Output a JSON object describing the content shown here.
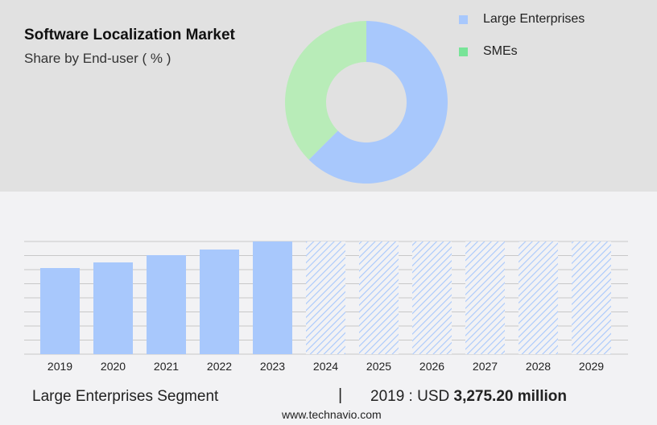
{
  "header": {
    "title": "Software Localization Market",
    "subtitle": "Share by End-user ( % )"
  },
  "chart_data": [
    {
      "type": "pie",
      "variant": "donut",
      "categories": [
        "Large Enterprises",
        "SMEs"
      ],
      "values": [
        62.5,
        37.5
      ],
      "colors": [
        "#a8c8fc",
        "#b8ecb8"
      ],
      "legend_colors": [
        "#a8c8fc",
        "#78e498"
      ],
      "legend": "top-right"
    },
    {
      "type": "bar",
      "categories": [
        "2019",
        "2020",
        "2021",
        "2022",
        "2023",
        "2024",
        "2025",
        "2026",
        "2027",
        "2028",
        "2029"
      ],
      "values": [
        3275.2,
        3489,
        3765,
        3979,
        4285,
        null,
        null,
        null,
        null,
        null,
        null
      ],
      "forecast_categories": [
        "2024",
        "2025",
        "2026",
        "2027",
        "2028",
        "2029"
      ],
      "ylim": [
        0,
        4285
      ],
      "grid": true,
      "color": "#a8c8fc",
      "forecast_style": "hatched"
    }
  ],
  "footer": {
    "segment": "Large Enterprises Segment",
    "separator": "|",
    "year_label": "2019 : USD",
    "value": "3,275.20 million",
    "site": "www.technavio.com"
  }
}
